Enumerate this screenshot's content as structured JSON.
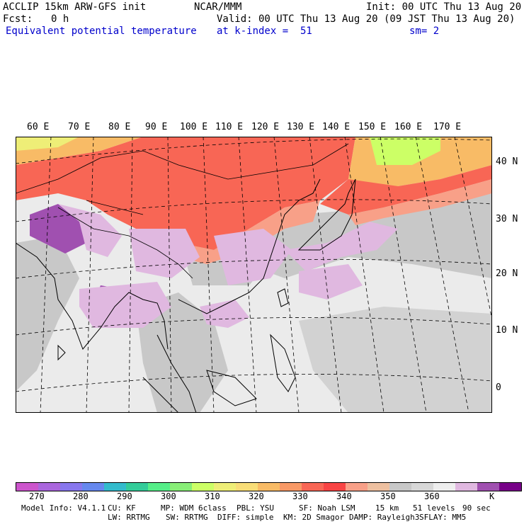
{
  "header": {
    "model": "ACCLIP 15km ARW-GFS init",
    "org": "NCAR/MMM",
    "init": "Init: 00 UTC Thu 13 Aug 20",
    "fcst_label": "Fcst:",
    "fcst_value": "0 h",
    "valid": "Valid: 00 UTC Thu 13 Aug 20 (09 JST Thu 13 Aug 20)",
    "field": "Equivalent potential temperature",
    "level": "at k-index =  51",
    "smooth": "sm= 2"
  },
  "map": {
    "lon_labels": [
      "60 E",
      "70 E",
      "80 E",
      "90 E",
      "100 E",
      "110 E",
      "120 E",
      "130 E",
      "140 E",
      "150 E",
      "160 E",
      "170 E"
    ],
    "lat_labels": [
      "40 N",
      "30 N",
      "20 N",
      "10 N",
      "0"
    ],
    "colors": {
      "ocean_bg": "#ebebeb",
      "land_line": "#000000",
      "grid_line": "#000000"
    }
  },
  "colorbar": {
    "colors": [
      "#cc55cc",
      "#aa66dd",
      "#8877ee",
      "#6688ee",
      "#33bbcc",
      "#33cc99",
      "#55ee88",
      "#88ee77",
      "#ccff66",
      "#eeee77",
      "#f8dd77",
      "#f8bb66",
      "#f89966",
      "#f86655",
      "#f84444",
      "#f8a088",
      "#eec0a0",
      "#c8c8c8",
      "#d8d8d8",
      "#eeeeee",
      "#e0b8e0",
      "#a050b0",
      "#770088"
    ],
    "labels": [
      "270",
      "280",
      "290",
      "300",
      "310",
      "320",
      "330",
      "340",
      "350",
      "360"
    ],
    "unit": "K"
  },
  "footer": {
    "line1": [
      "Model Info: V4.1.1",
      "CU: KF",
      "MP: WDM 6class",
      "PBL: YSU",
      "SF: Noah LSM",
      "15 km",
      "51 levels",
      "90 sec"
    ],
    "line2": [
      "LW: RRTMG",
      "SW: RRTMG",
      "DIFF: simple",
      "KM: 2D Smagor",
      "DAMP: Rayleigh3",
      "SFLAY: MM5"
    ]
  }
}
